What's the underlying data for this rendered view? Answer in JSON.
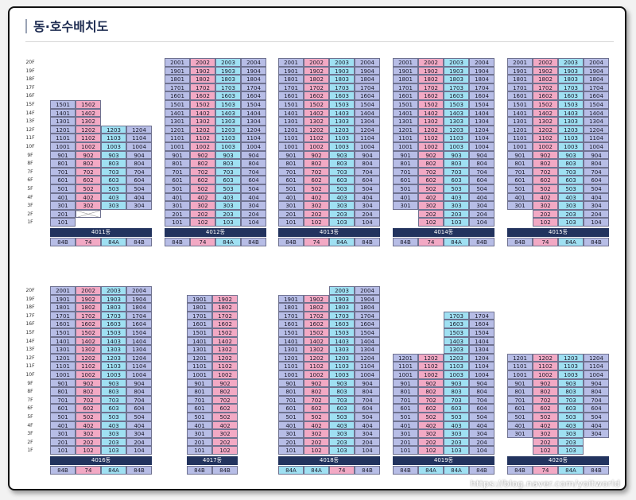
{
  "title": "동·호수배치도",
  "floor_labels": [
    "20F",
    "19F",
    "18F",
    "17F",
    "16F",
    "15F",
    "14F",
    "13F",
    "12F",
    "11F",
    "10F",
    "9F",
    "8F",
    "7F",
    "6F",
    "5F",
    "4F",
    "3F",
    "2F",
    "1F"
  ],
  "buildings_row1": [
    {
      "name": "4011동",
      "types": [
        "84B",
        "74",
        "84A",
        "84B"
      ],
      "cols": [
        {
          "from": 1,
          "to": 15
        },
        {
          "from": 2,
          "to": 15
        },
        {
          "from": 3,
          "to": 12
        },
        {
          "from": 3,
          "to": 12
        }
      ],
      "empty": [
        {
          "col": 1,
          "floor": 2
        },
        {
          "col": 2,
          "floor": 2
        },
        {
          "col": 3,
          "floor": 2
        }
      ]
    },
    {
      "name": "4012동",
      "types": [
        "84B",
        "74",
        "84A",
        "84B"
      ],
      "cols": [
        {
          "from": 1,
          "to": 20
        },
        {
          "from": 1,
          "to": 20
        },
        {
          "from": 1,
          "to": 20
        },
        {
          "from": 1,
          "to": 20
        }
      ],
      "empty": []
    },
    {
      "name": "4013동",
      "types": [
        "84B",
        "74",
        "84A",
        "84B"
      ],
      "cols": [
        {
          "from": 1,
          "to": 20
        },
        {
          "from": 1,
          "to": 20
        },
        {
          "from": 1,
          "to": 20
        },
        {
          "from": 1,
          "to": 20
        }
      ],
      "empty": []
    },
    {
      "name": "4014동",
      "types": [
        "84B",
        "74",
        "84A",
        "84B"
      ],
      "cols": [
        {
          "from": 3,
          "to": 20
        },
        {
          "from": 1,
          "to": 20
        },
        {
          "from": 1,
          "to": 20
        },
        {
          "from": 1,
          "to": 20
        }
      ],
      "empty": [
        {
          "col": 0,
          "floor": 2
        },
        {
          "col": 0,
          "floor": 1
        }
      ]
    },
    {
      "name": "4015동",
      "types": [
        "84B",
        "74",
        "84A",
        "84B"
      ],
      "cols": [
        {
          "from": 3,
          "to": 20
        },
        {
          "from": 1,
          "to": 20
        },
        {
          "from": 1,
          "to": 20
        },
        {
          "from": 1,
          "to": 20
        }
      ],
      "empty": [
        {
          "col": 0,
          "floor": 2
        },
        {
          "col": 0,
          "floor": 1
        }
      ]
    }
  ],
  "buildings_row2": [
    {
      "name": "4016동",
      "types": [
        "84B",
        "74",
        "84A",
        "84B"
      ],
      "cols": [
        {
          "from": 1,
          "to": 20
        },
        {
          "from": 1,
          "to": 20
        },
        {
          "from": 1,
          "to": 20
        },
        {
          "from": 1,
          "to": 20
        }
      ],
      "empty": []
    },
    {
      "name": "4017동",
      "types": [
        "84B",
        "84B"
      ],
      "cols": [
        {
          "from": 1,
          "to": 19
        },
        {
          "from": 1,
          "to": 19
        }
      ],
      "empty": []
    },
    {
      "name": "4018동",
      "types": [
        "84A",
        "84A",
        "74",
        "84B"
      ],
      "cols": [
        {
          "from": 1,
          "to": 19
        },
        {
          "from": 1,
          "to": 19
        },
        {
          "from": 1,
          "to": 20
        },
        {
          "from": 1,
          "to": 20
        }
      ],
      "empty": []
    },
    {
      "name": "4019동",
      "types": [
        "84B",
        "84A",
        "84A",
        "84B"
      ],
      "cols": [
        {
          "from": 1,
          "to": 12
        },
        {
          "from": 1,
          "to": 12
        },
        {
          "from": 1,
          "to": 17
        },
        {
          "from": 1,
          "to": 17
        }
      ],
      "empty": []
    },
    {
      "name": "4020동",
      "types": [
        "84B",
        "74",
        "84A",
        "84B"
      ],
      "cols": [
        {
          "from": 3,
          "to": 12
        },
        {
          "from": 1,
          "to": 12
        },
        {
          "from": 1,
          "to": 12
        },
        {
          "from": 3,
          "to": 12
        }
      ],
      "empty": [
        {
          "col": 0,
          "floor": 2
        },
        {
          "col": 0,
          "floor": 1
        },
        {
          "col": 3,
          "floor": 2
        },
        {
          "col": 3,
          "floor": 1
        }
      ]
    }
  ],
  "watermark": "https://blog.naver.com/yoitworld",
  "colors": {
    "col0": "#b7bde6",
    "col1": "#f2a9c4",
    "col2": "#9fe0f2",
    "col3": "#b7bde6",
    "label": "#22335e"
  }
}
